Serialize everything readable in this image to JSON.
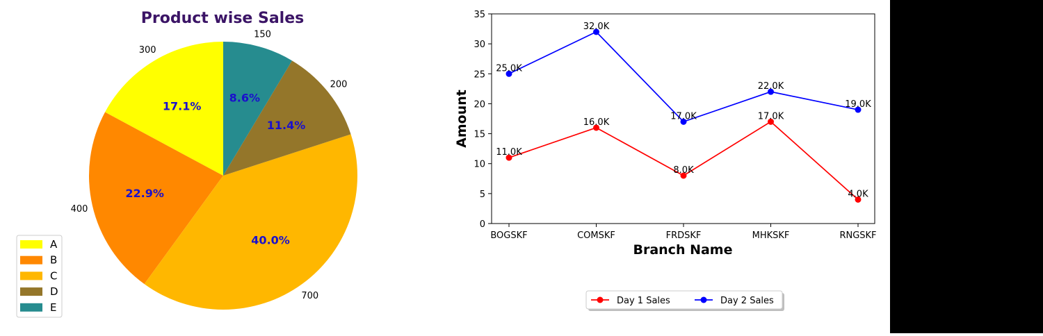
{
  "colors": {
    "background": "#ffffff",
    "right_strip": "#000000",
    "pie_title": "#3b1466",
    "pct_label": "#1a10cc",
    "day1": "#ff0000",
    "day2": "#0000ff"
  },
  "chart_data": [
    {
      "type": "pie",
      "title": "Product wise Sales",
      "categories": [
        "A",
        "B",
        "C",
        "D",
        "E"
      ],
      "values": [
        300,
        400,
        700,
        200,
        150
      ],
      "value_labels": [
        "300",
        "400",
        "700",
        "200",
        "150"
      ],
      "percent_labels": [
        "17.1%",
        "22.9%",
        "40.0%",
        "11.4%",
        "8.6%"
      ],
      "colors": [
        "#ffff00",
        "#ff8800",
        "#ffb700",
        "#94762a",
        "#268c8f"
      ],
      "start_angle": 90,
      "direction": "counterclockwise",
      "legend": {
        "position": "bottom-left",
        "entries": [
          "A",
          "B",
          "C",
          "D",
          "E"
        ]
      }
    },
    {
      "type": "line",
      "categories": [
        "BOGSKF",
        "COMSKF",
        "FRDSKF",
        "MHKSKF",
        "RNGSKF"
      ],
      "series": [
        {
          "name": "Day 1 Sales",
          "color": "#ff0000",
          "values": [
            11,
            16,
            8,
            17,
            4
          ],
          "labels": [
            "11.0K",
            "16.0K",
            "8.0K",
            "17.0K",
            "4.0K"
          ]
        },
        {
          "name": "Day 2 Sales",
          "color": "#0000ff",
          "values": [
            25,
            32,
            17,
            22,
            19
          ],
          "labels": [
            "25.0K",
            "32.0K",
            "17.0K",
            "22.0K",
            "19.0K"
          ]
        }
      ],
      "xlabel": "Branch Name",
      "ylabel": "Amount",
      "ylim": [
        0,
        35
      ],
      "yticks": [
        "0",
        "5",
        "10",
        "15",
        "20",
        "25",
        "30",
        "35"
      ],
      "grid": false,
      "legend": {
        "position": "bottom-center",
        "entries": [
          "Day 1 Sales",
          "Day 2 Sales"
        ]
      }
    }
  ]
}
